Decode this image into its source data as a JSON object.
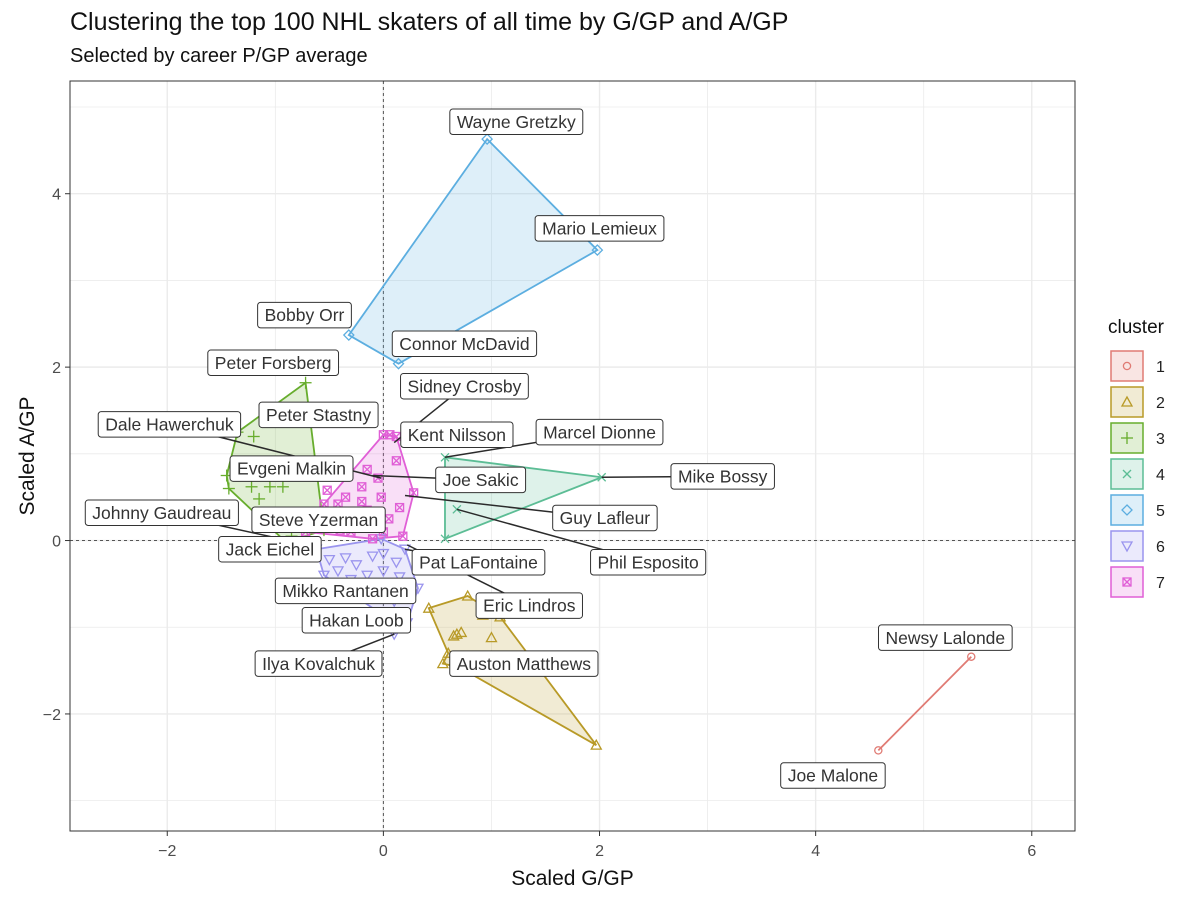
{
  "chart_data": {
    "type": "scatter",
    "title": "Clustering the top 100 NHL skaters of all time by G/GP and A/GP",
    "subtitle": "Selected by career P/GP average",
    "xlabel": "Scaled G/GP",
    "ylabel": "Scaled A/GP",
    "xlim": [
      -2.9,
      6.4
    ],
    "ylim": [
      -3.35,
      5.3
    ],
    "xticks": [
      -2,
      0,
      2,
      4,
      6
    ],
    "yticks": [
      -2,
      0,
      2,
      4
    ],
    "xtick_labels": [
      "−2",
      "0",
      "2",
      "4",
      "6"
    ],
    "ytick_labels": [
      "−2",
      "0",
      "2",
      "4"
    ],
    "grid": true,
    "reference_lines": {
      "x": 0,
      "y": 0
    },
    "legend": {
      "title": "cluster",
      "position": "right",
      "entries": [
        "1",
        "2",
        "3",
        "4",
        "5",
        "6",
        "7"
      ]
    },
    "series": [
      {
        "name": "1",
        "color": "#e07b74",
        "marker": "circle",
        "hull": [
          [
            4.58,
            -2.42
          ],
          [
            5.44,
            -1.34
          ]
        ],
        "points": [
          [
            4.58,
            -2.42
          ],
          [
            5.44,
            -1.34
          ]
        ]
      },
      {
        "name": "2",
        "color": "#b89a27",
        "marker": "triangle",
        "hull": [
          [
            0.42,
            -0.78
          ],
          [
            0.78,
            -0.64
          ],
          [
            1.08,
            -0.88
          ],
          [
            1.97,
            -2.36
          ],
          [
            0.7,
            -1.46
          ],
          [
            0.55,
            -1.42
          ],
          [
            0.6,
            -1.3
          ]
        ],
        "points": [
          [
            0.42,
            -0.78
          ],
          [
            0.78,
            -0.64
          ],
          [
            1.08,
            -0.88
          ],
          [
            1.97,
            -2.36
          ],
          [
            0.7,
            -1.46
          ],
          [
            0.55,
            -1.42
          ],
          [
            0.6,
            -1.3
          ],
          [
            0.68,
            -1.08
          ],
          [
            0.72,
            -1.06
          ],
          [
            0.92,
            -0.86
          ],
          [
            1.0,
            -1.12
          ],
          [
            1.43,
            -1.35
          ],
          [
            0.65,
            -1.1
          ]
        ]
      },
      {
        "name": "3",
        "color": "#67ad2d",
        "marker": "plus",
        "hull": [
          [
            -1.45,
            0.75
          ],
          [
            -1.35,
            1.25
          ],
          [
            -0.72,
            1.82
          ],
          [
            -0.55,
            0.12
          ],
          [
            -0.9,
            -0.02
          ],
          [
            -1.43,
            0.6
          ]
        ],
        "points": [
          [
            -1.45,
            0.75
          ],
          [
            -1.35,
            1.25
          ],
          [
            -0.72,
            1.82
          ],
          [
            -0.55,
            0.12
          ],
          [
            -0.9,
            -0.02
          ],
          [
            -1.43,
            0.6
          ],
          [
            -1.2,
            1.2
          ],
          [
            -1.15,
            0.48
          ],
          [
            -1.22,
            0.62
          ],
          [
            -1.05,
            0.62
          ],
          [
            -0.93,
            0.62
          ],
          [
            -1.0,
            0.2
          ],
          [
            -1.05,
            0.85
          ],
          [
            -0.85,
            0.05
          ]
        ]
      },
      {
        "name": "4",
        "color": "#5cbd95",
        "marker": "x",
        "hull": [
          [
            0.57,
            0.96
          ],
          [
            2.02,
            0.73
          ],
          [
            0.57,
            0.02
          ]
        ],
        "points": [
          [
            0.57,
            0.96
          ],
          [
            2.02,
            0.73
          ],
          [
            0.57,
            0.02
          ],
          [
            0.68,
            0.36
          ]
        ]
      },
      {
        "name": "5",
        "color": "#5caee0",
        "marker": "diamond",
        "hull": [
          [
            0.96,
            4.63
          ],
          [
            1.98,
            3.35
          ],
          [
            0.14,
            2.04
          ],
          [
            -0.32,
            2.37
          ]
        ],
        "points": [
          [
            0.96,
            4.63
          ],
          [
            1.98,
            3.35
          ],
          [
            0.14,
            2.04
          ],
          [
            -0.32,
            2.37
          ]
        ]
      },
      {
        "name": "6",
        "color": "#9a94ee",
        "marker": "triangle-down",
        "hull": [
          [
            -0.62,
            -0.1
          ],
          [
            -0.02,
            0.02
          ],
          [
            0.2,
            -0.1
          ],
          [
            0.32,
            -0.55
          ],
          [
            0.22,
            -0.95
          ],
          [
            0.1,
            -1.08
          ],
          [
            -0.05,
            -0.82
          ],
          [
            -0.55,
            -0.4
          ]
        ],
        "points": [
          [
            -0.62,
            -0.1
          ],
          [
            -0.02,
            0.02
          ],
          [
            0.2,
            -0.1
          ],
          [
            0.32,
            -0.55
          ],
          [
            0.22,
            -0.95
          ],
          [
            0.1,
            -1.08
          ],
          [
            -0.05,
            -0.82
          ],
          [
            -0.55,
            -0.4
          ],
          [
            -0.5,
            -0.22
          ],
          [
            -0.42,
            -0.35
          ],
          [
            -0.35,
            -0.2
          ],
          [
            -0.3,
            -0.45
          ],
          [
            -0.25,
            -0.28
          ],
          [
            -0.2,
            -0.55
          ],
          [
            -0.15,
            -0.4
          ],
          [
            -0.1,
            -0.18
          ],
          [
            -0.05,
            -0.6
          ],
          [
            0.0,
            -0.35
          ],
          [
            0.05,
            -0.5
          ],
          [
            0.1,
            -0.7
          ],
          [
            0.15,
            -0.42
          ],
          [
            0.12,
            -0.25
          ],
          [
            -0.38,
            -0.55
          ],
          [
            -0.28,
            -0.65
          ],
          [
            0.0,
            -0.15
          ]
        ]
      },
      {
        "name": "7",
        "color": "#e05fd6",
        "marker": "square-x",
        "hull": [
          [
            -0.72,
            0.1
          ],
          [
            -0.55,
            0.42
          ],
          [
            0.0,
            1.22
          ],
          [
            0.12,
            1.2
          ],
          [
            0.28,
            0.55
          ],
          [
            0.18,
            0.05
          ],
          [
            -0.1,
            0.02
          ]
        ],
        "points": [
          [
            -0.72,
            0.1
          ],
          [
            -0.55,
            0.42
          ],
          [
            0.0,
            1.22
          ],
          [
            0.12,
            1.2
          ],
          [
            0.28,
            0.55
          ],
          [
            0.18,
            0.05
          ],
          [
            -0.1,
            0.02
          ],
          [
            0.06,
            1.22
          ],
          [
            0.12,
            0.92
          ],
          [
            -0.05,
            0.72
          ],
          [
            -0.15,
            0.82
          ],
          [
            -0.2,
            0.62
          ],
          [
            -0.35,
            0.5
          ],
          [
            -0.42,
            0.42
          ],
          [
            -0.52,
            0.58
          ],
          [
            -0.32,
            0.3
          ],
          [
            -0.25,
            0.2
          ],
          [
            -0.5,
            0.25
          ],
          [
            -0.15,
            0.35
          ],
          [
            -0.02,
            0.5
          ],
          [
            0.05,
            0.25
          ],
          [
            0.15,
            0.38
          ],
          [
            -0.3,
            0.1
          ],
          [
            -0.4,
            0.12
          ],
          [
            -0.1,
            0.15
          ],
          [
            0.0,
            0.1
          ],
          [
            -0.58,
            0.32
          ],
          [
            -0.2,
            0.45
          ]
        ]
      }
    ],
    "annotations": [
      {
        "text": "Wayne Gretzky",
        "point": [
          0.96,
          4.63
        ],
        "label": [
          1.23,
          4.83
        ],
        "leader": false
      },
      {
        "text": "Mario Lemieux",
        "point": [
          1.98,
          3.35
        ],
        "label": [
          2.0,
          3.6
        ],
        "leader": false
      },
      {
        "text": "Bobby Orr",
        "point": [
          -0.32,
          2.37
        ],
        "label": [
          -0.73,
          2.6
        ],
        "leader": false
      },
      {
        "text": "Connor McDavid",
        "point": [
          0.14,
          2.04
        ],
        "label": [
          0.75,
          2.27
        ],
        "leader": false
      },
      {
        "text": "Peter Forsberg",
        "point": [
          -0.72,
          1.82
        ],
        "label": [
          -1.02,
          2.05
        ],
        "leader": false
      },
      {
        "text": "Sidney Crosby",
        "point": [
          0.1,
          1.13
        ],
        "label": [
          0.75,
          1.78
        ],
        "leader": true
      },
      {
        "text": "Peter Stastny",
        "point": [
          -1.2,
          1.2
        ],
        "label": [
          -0.6,
          1.45
        ],
        "leader": false
      },
      {
        "text": "Dale Hawerchuk",
        "point": [
          -0.02,
          0.72
        ],
        "label": [
          -1.98,
          1.34
        ],
        "leader": true
      },
      {
        "text": "Kent Nilsson",
        "point": [
          0.06,
          1.22
        ],
        "label": [
          0.68,
          1.22
        ],
        "leader": false
      },
      {
        "text": "Marcel Dionne",
        "point": [
          0.57,
          0.96
        ],
        "label": [
          2.0,
          1.25
        ],
        "leader": true
      },
      {
        "text": "Mike Bossy",
        "point": [
          2.02,
          0.73
        ],
        "label": [
          3.14,
          0.74
        ],
        "leader": true
      },
      {
        "text": "Evgeni Malkin",
        "point": [
          -1.0,
          0.6
        ],
        "label": [
          -0.85,
          0.83
        ],
        "leader": false
      },
      {
        "text": "Joe Sakic",
        "point": [
          -0.1,
          0.75
        ],
        "label": [
          0.9,
          0.7
        ],
        "leader": true
      },
      {
        "text": "Guy Lafleur",
        "point": [
          0.2,
          0.52
        ],
        "label": [
          2.05,
          0.26
        ],
        "leader": true
      },
      {
        "text": "Johnny Gaudreau",
        "point": [
          -0.88,
          0.0
        ],
        "label": [
          -2.05,
          0.32
        ],
        "leader": true
      },
      {
        "text": "Steve Yzerman",
        "point": [
          -0.55,
          0.42
        ],
        "label": [
          -0.6,
          0.24
        ],
        "leader": false
      },
      {
        "text": "Phil Esposito",
        "point": [
          0.68,
          0.36
        ],
        "label": [
          2.45,
          -0.25
        ],
        "leader": true
      },
      {
        "text": "Jack Eichel",
        "point": [
          -0.9,
          -0.02
        ],
        "label": [
          -1.05,
          -0.1
        ],
        "leader": false
      },
      {
        "text": "Pat LaFontaine",
        "point": [
          0.2,
          -0.1
        ],
        "label": [
          0.88,
          -0.25
        ],
        "leader": true
      },
      {
        "text": "Mikko Rantanen",
        "point": [
          -0.3,
          -0.45
        ],
        "label": [
          -0.35,
          -0.58
        ],
        "leader": false
      },
      {
        "text": "Eric Lindros",
        "point": [
          0.22,
          -0.05
        ],
        "label": [
          1.35,
          -0.75
        ],
        "leader": true
      },
      {
        "text": "Hakan Loob",
        "point": [
          -0.05,
          -0.82
        ],
        "label": [
          -0.25,
          -0.92
        ],
        "leader": false
      },
      {
        "text": "Ilya Kovalchuk",
        "point": [
          0.1,
          -1.08
        ],
        "label": [
          -0.6,
          -1.42
        ],
        "leader": true
      },
      {
        "text": "Auston Matthews",
        "point": [
          0.55,
          -1.42
        ],
        "label": [
          1.3,
          -1.42
        ],
        "leader": false
      },
      {
        "text": "Newsy Lalonde",
        "point": [
          5.44,
          -1.34
        ],
        "label": [
          5.2,
          -1.12
        ],
        "leader": false
      },
      {
        "text": "Joe Malone",
        "point": [
          4.58,
          -2.42
        ],
        "label": [
          4.16,
          -2.71
        ],
        "leader": false
      }
    ]
  }
}
